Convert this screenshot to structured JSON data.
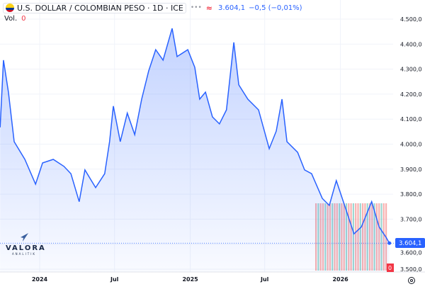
{
  "header": {
    "symbol": "U.S. DOLLAR / COLOMBIAN PESO · 1D · ICE",
    "last": "3.604,1",
    "change": "−0,5 (−0,01%)",
    "vol_label": "Vol.",
    "vol_value": "0"
  },
  "logo": {
    "name": "VALORA",
    "sub": "ANALITIK"
  },
  "price_label": "3.604,1",
  "volume_label": "0",
  "colors": {
    "line": "#2962ff",
    "fill": "#2962ff",
    "up": "#26a69a",
    "down": "#ef5350",
    "axis_text": "#131722"
  },
  "chart_data": {
    "type": "area",
    "title": "U.S. DOLLAR / COLOMBIAN PESO · 1D · ICE",
    "xlabel": "",
    "ylabel": "",
    "ylim": [
      3500,
      4500
    ],
    "yticks": [
      "4.500,0",
      "4.400,0",
      "4.300,0",
      "4.200,0",
      "4.100,0",
      "4.000,0",
      "3.900,0",
      "3.800,0",
      "3.700,0",
      "3.600,0",
      "3.500,0"
    ],
    "ytick_values": [
      4500,
      4400,
      4300,
      4200,
      4100,
      4000,
      3900,
      3800,
      3700,
      3600,
      3500
    ],
    "xticks": [
      {
        "label": "2024",
        "date": "2024-01-01"
      },
      {
        "label": "Jul",
        "date": "2024-07-01"
      },
      {
        "label": "2025",
        "date": "2025-01-01"
      },
      {
        "label": "Jul",
        "date": "2025-07-01"
      },
      {
        "label": "2026",
        "date": "2026-01-01"
      }
    ],
    "grid": true,
    "series": [
      {
        "points": [
          [
            "2023-09-27",
            4067
          ],
          [
            "2023-10-05",
            4336
          ],
          [
            "2023-10-17",
            4208
          ],
          [
            "2023-10-31",
            4010
          ],
          [
            "2023-11-26",
            3939
          ],
          [
            "2023-12-22",
            3840
          ],
          [
            "2024-01-08",
            3925
          ],
          [
            "2024-02-03",
            3939
          ],
          [
            "2024-02-29",
            3911
          ],
          [
            "2024-03-17",
            3882
          ],
          [
            "2024-04-06",
            3770
          ],
          [
            "2024-04-20",
            3897
          ],
          [
            "2024-05-16",
            3826
          ],
          [
            "2024-06-07",
            3882
          ],
          [
            "2024-06-19",
            4010
          ],
          [
            "2024-06-28",
            4152
          ],
          [
            "2024-07-15",
            4010
          ],
          [
            "2024-08-01",
            4124
          ],
          [
            "2024-08-19",
            4038
          ],
          [
            "2024-09-05",
            4180
          ],
          [
            "2024-09-22",
            4293
          ],
          [
            "2024-10-09",
            4378
          ],
          [
            "2024-10-27",
            4336
          ],
          [
            "2024-11-18",
            4463
          ],
          [
            "2024-11-30",
            4350
          ],
          [
            "2024-12-26",
            4378
          ],
          [
            "2025-01-12",
            4307
          ],
          [
            "2025-01-24",
            4180
          ],
          [
            "2025-02-07",
            4208
          ],
          [
            "2025-02-24",
            4109
          ],
          [
            "2025-03-13",
            4081
          ],
          [
            "2025-03-30",
            4137
          ],
          [
            "2025-04-17",
            4407
          ],
          [
            "2025-04-29",
            4237
          ],
          [
            "2025-05-21",
            4180
          ],
          [
            "2025-06-16",
            4137
          ],
          [
            "2025-07-12",
            3982
          ],
          [
            "2025-07-29",
            4052
          ],
          [
            "2025-08-12",
            4180
          ],
          [
            "2025-08-24",
            4010
          ],
          [
            "2025-09-19",
            3967
          ],
          [
            "2025-10-06",
            3897
          ],
          [
            "2025-10-23",
            3882
          ],
          [
            "2025-11-18",
            3783
          ],
          [
            "2025-12-05",
            3755
          ],
          [
            "2025-12-22",
            3854
          ],
          [
            "2026-01-17",
            3726
          ],
          [
            "2026-02-03",
            3641
          ],
          [
            "2026-02-21",
            3669
          ],
          [
            "2026-03-18",
            3770
          ],
          [
            "2026-04-05",
            3669
          ],
          [
            "2026-04-22",
            3627
          ],
          [
            "2026-04-30",
            3604
          ]
        ]
      }
    ],
    "last_value": 3604.1
  }
}
